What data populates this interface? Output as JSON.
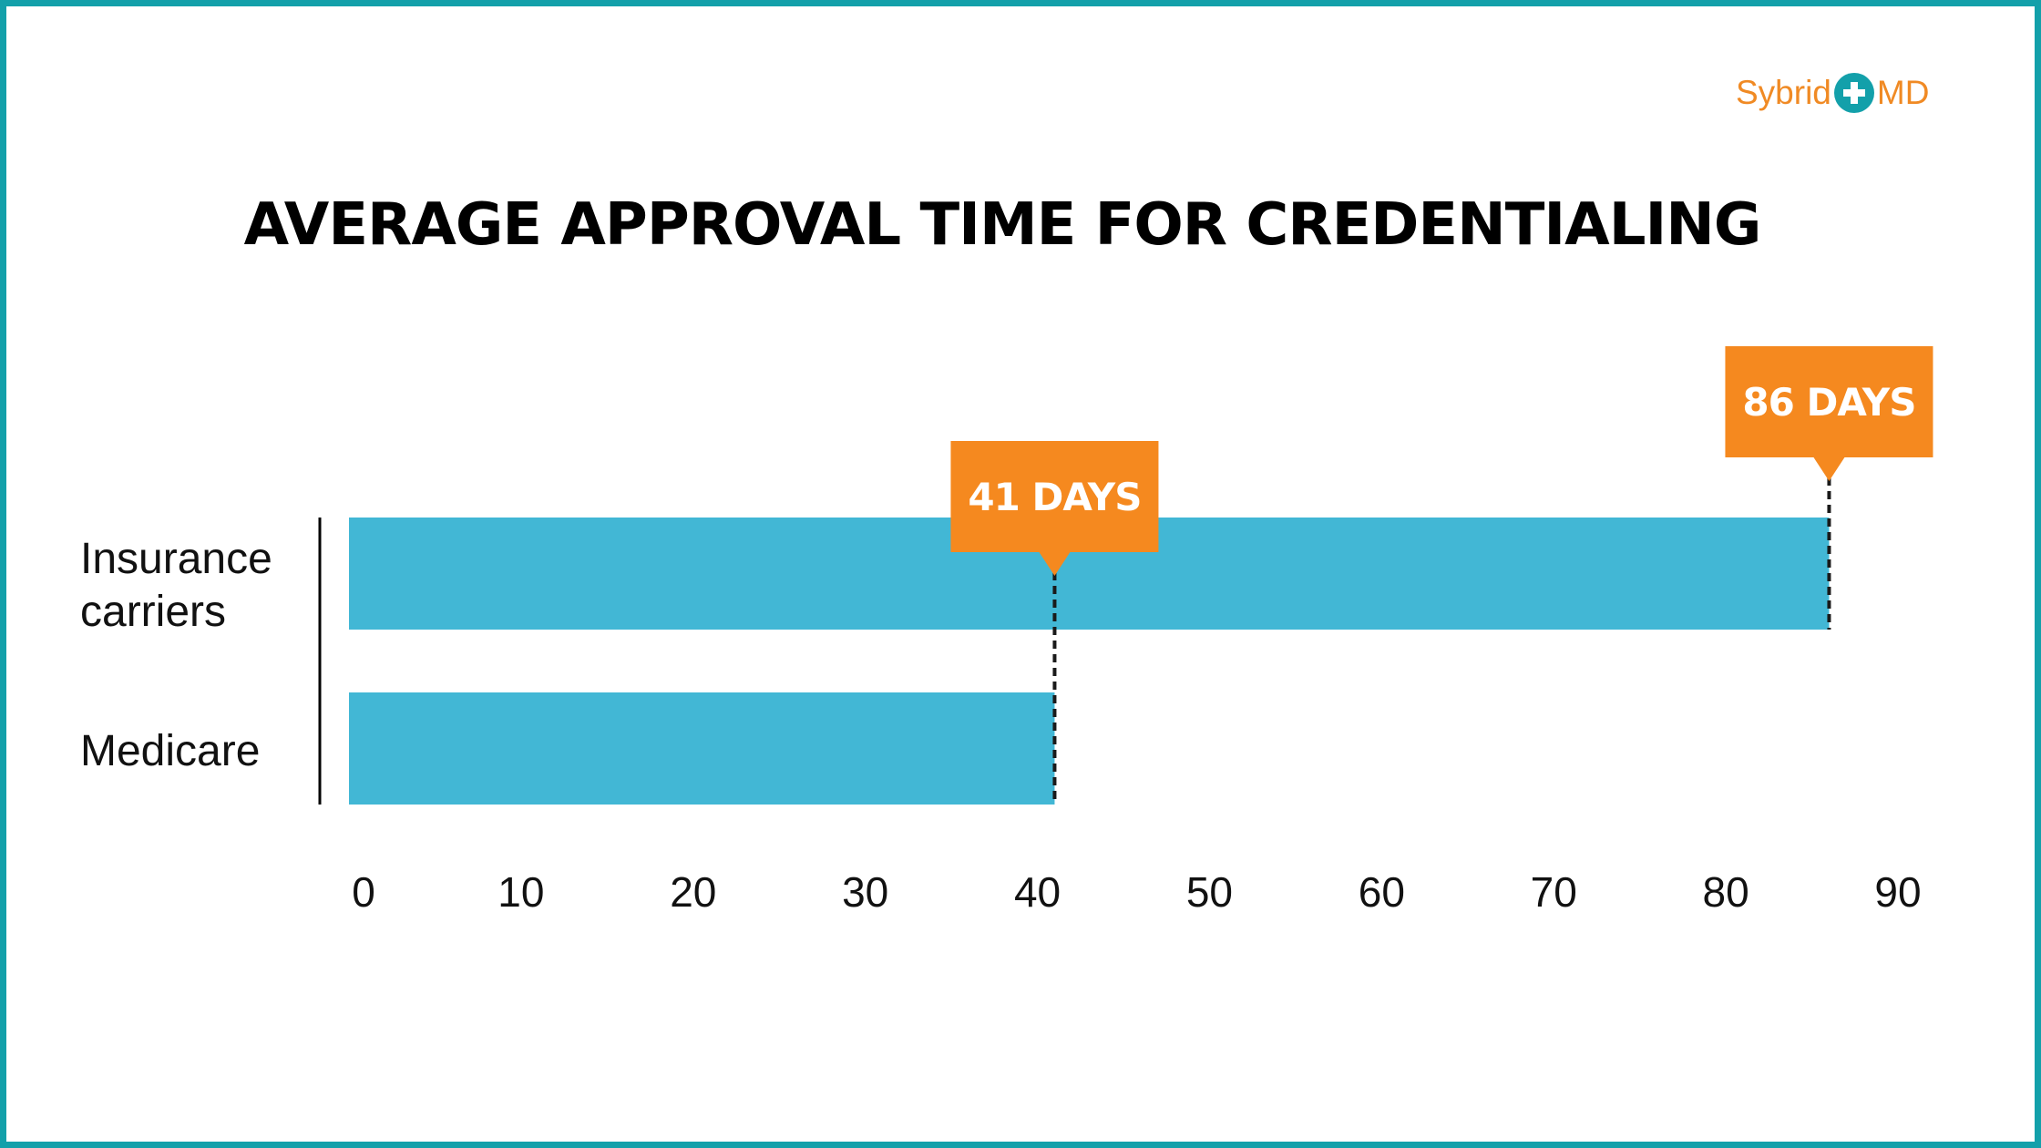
{
  "brand": {
    "name_left": "Sybrid",
    "name_right": "MD",
    "icon": "plus-icon",
    "color": "#f08a24",
    "icon_color": "#13a0aa"
  },
  "chart_data": {
    "type": "bar",
    "orientation": "horizontal",
    "title": "AVERAGE APPROVAL TIME FOR CREDENTIALING",
    "categories": [
      "Insurance carriers",
      "Medicare"
    ],
    "values": [
      86,
      41
    ],
    "data_labels": [
      "86 DAYS",
      "41 DAYS"
    ],
    "xticks": [
      "0",
      "10",
      "20",
      "30",
      "40",
      "50",
      "60",
      "70",
      "80",
      "90"
    ],
    "xlim": [
      0,
      90
    ],
    "xlabel": "",
    "ylabel": "",
    "grid": false,
    "bar_color": "#42b7d5",
    "label_color": "#f5891f",
    "border_color": "#13a0aa"
  }
}
